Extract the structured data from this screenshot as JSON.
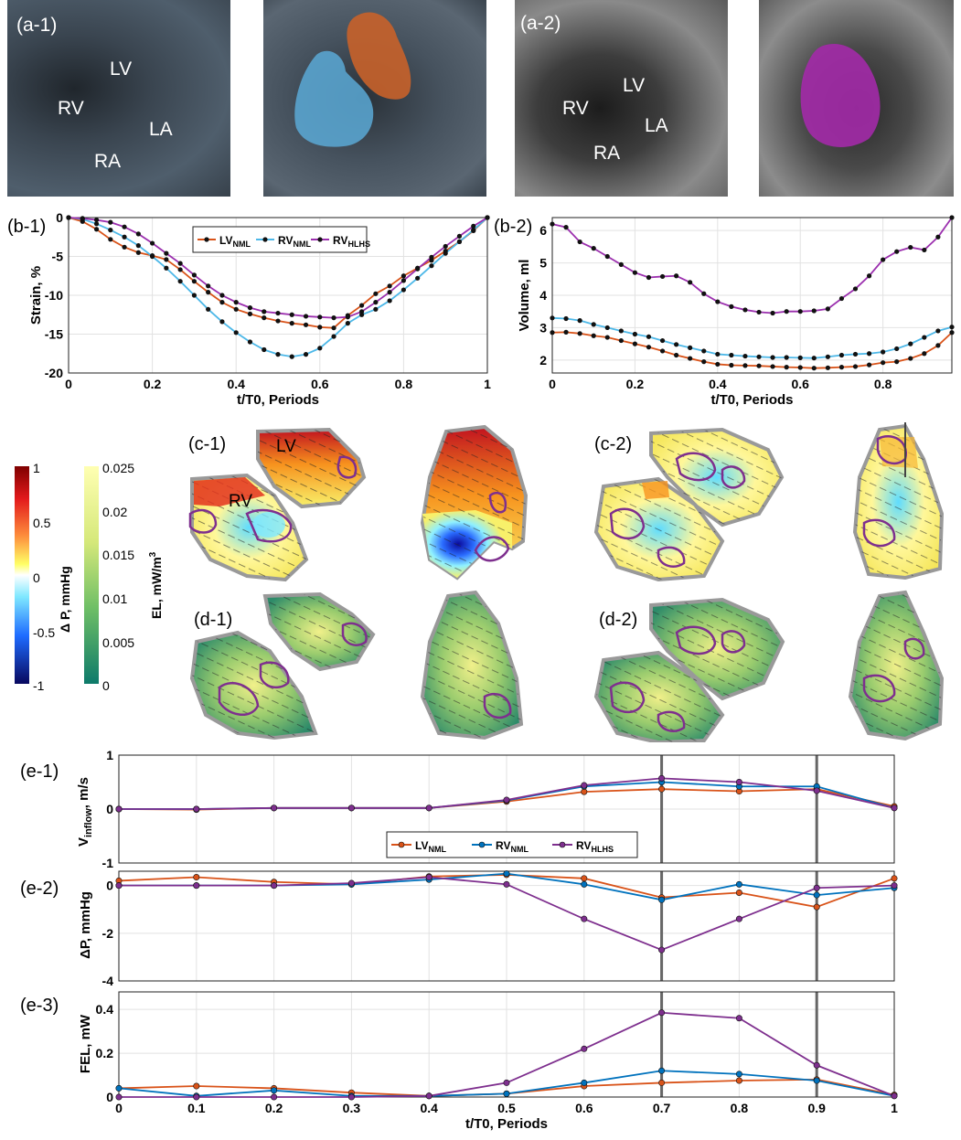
{
  "panel_a": {
    "a1": {
      "label": "(a-1)",
      "structures": {
        "lv": "LV",
        "rv": "RV",
        "la": "LA",
        "ra": "RA"
      }
    },
    "a2": {
      "label": "(a-2)",
      "structures": {
        "lv": "LV",
        "rv": "RV",
        "la": "LA",
        "ra": "RA"
      }
    },
    "colors": {
      "rv_seg": "#5aa9d6",
      "lv_seg": "#c8622a",
      "hlhs_seg": "#a32aa8"
    }
  },
  "legend": {
    "lv_nml": "LV",
    "lv_nml_sub": "NML",
    "rv_nml": "RV",
    "rv_nml_sub": "NML",
    "rv_hlhs": "RV",
    "rv_hlhs_sub": "HLHS"
  },
  "series_colors": {
    "lv_nml": "#d95319",
    "rv_nml": "#4db8e8",
    "rv_hlhs": "#9b2fae",
    "rv_nml_e": "#0072bd",
    "rv_hlhs_e": "#7e2f8e"
  },
  "chart_data": [
    {
      "id": "b1",
      "label": "(b-1)",
      "type": "line",
      "xlabel": "t/T0, Periods",
      "ylabel": "Strain, %",
      "xlim": [
        0,
        1
      ],
      "ylim": [
        -20,
        0
      ],
      "xticks": [
        "0",
        "0.2",
        "0.4",
        "0.6",
        "0.8",
        "1"
      ],
      "yticks": [
        "0",
        "-5",
        "-10",
        "-15",
        "-20"
      ],
      "x": [
        0,
        0.0333,
        0.0667,
        0.1,
        0.1333,
        0.1667,
        0.2,
        0.2333,
        0.2667,
        0.3,
        0.3333,
        0.3667,
        0.4,
        0.4333,
        0.4667,
        0.5,
        0.5333,
        0.5667,
        0.6,
        0.6333,
        0.6667,
        0.7,
        0.7333,
        0.7667,
        0.8,
        0.8333,
        0.8667,
        0.9,
        0.9333,
        0.9667,
        1
      ],
      "series": [
        {
          "key": "lv_nml",
          "name": "LVNML",
          "values": [
            0,
            -0.5,
            -1.5,
            -2.8,
            -3.8,
            -4.5,
            -4.9,
            -5.4,
            -6.7,
            -8.2,
            -9.6,
            -10.9,
            -11.8,
            -12.4,
            -12.9,
            -13.3,
            -13.6,
            -13.8,
            -14.1,
            -14.2,
            -12.6,
            -11.3,
            -9.8,
            -8.8,
            -7.5,
            -6.5,
            -5.5,
            -4.3,
            -3.1,
            -1.7,
            0
          ]
        },
        {
          "key": "rv_nml",
          "name": "RVNML",
          "values": [
            0,
            -0.2,
            -0.8,
            -1.6,
            -2.5,
            -3.6,
            -5.0,
            -6.5,
            -8.2,
            -10.0,
            -11.8,
            -13.4,
            -14.8,
            -16.0,
            -17.0,
            -17.6,
            -17.9,
            -17.6,
            -16.8,
            -15.3,
            -13.6,
            -12.5,
            -11.8,
            -10.7,
            -9.3,
            -7.8,
            -6.2,
            -4.6,
            -3.1,
            -1.6,
            0
          ]
        },
        {
          "key": "rv_hlhs",
          "name": "RVHLHS",
          "values": [
            0,
            -0.1,
            -0.3,
            -0.6,
            -1.2,
            -2.1,
            -3.3,
            -4.6,
            -5.9,
            -7.4,
            -8.8,
            -10.0,
            -10.9,
            -11.6,
            -12.1,
            -12.3,
            -12.5,
            -12.7,
            -12.8,
            -12.9,
            -12.8,
            -12.1,
            -10.9,
            -9.6,
            -8.1,
            -6.6,
            -5.1,
            -3.7,
            -2.4,
            -1.1,
            0
          ]
        }
      ]
    },
    {
      "id": "b2",
      "label": "(b-2)",
      "type": "line",
      "xlabel": "t/T0, Periods",
      "ylabel": "Volume, ml",
      "xlim": [
        0,
        0.9667
      ],
      "ylim": [
        1.6,
        6.4
      ],
      "xticks": [
        "0",
        "0.2",
        "0.4",
        "0.6",
        "0.8"
      ],
      "yticks": [
        "6",
        "5",
        "4",
        "3",
        "2"
      ],
      "x": [
        0,
        0.0333,
        0.0667,
        0.1,
        0.1333,
        0.1667,
        0.2,
        0.2333,
        0.2667,
        0.3,
        0.3333,
        0.3667,
        0.4,
        0.4333,
        0.4667,
        0.5,
        0.5333,
        0.5667,
        0.6,
        0.6333,
        0.6667,
        0.7,
        0.7333,
        0.7667,
        0.8,
        0.8333,
        0.8667,
        0.9,
        0.9333,
        0.9667
      ],
      "series": [
        {
          "key": "lv_nml",
          "name": "LVNML",
          "values": [
            2.85,
            2.86,
            2.82,
            2.75,
            2.7,
            2.6,
            2.5,
            2.4,
            2.28,
            2.15,
            2.05,
            1.95,
            1.87,
            1.84,
            1.83,
            1.82,
            1.8,
            1.78,
            1.77,
            1.75,
            1.76,
            1.78,
            1.8,
            1.85,
            1.92,
            1.95,
            2.05,
            2.2,
            2.45,
            2.85
          ]
        },
        {
          "key": "rv_nml",
          "name": "RVNML",
          "values": [
            3.3,
            3.28,
            3.22,
            3.1,
            3.0,
            2.9,
            2.8,
            2.72,
            2.6,
            2.48,
            2.38,
            2.28,
            2.18,
            2.15,
            2.12,
            2.1,
            2.08,
            2.08,
            2.07,
            2.06,
            2.1,
            2.15,
            2.18,
            2.2,
            2.25,
            2.35,
            2.5,
            2.7,
            2.9,
            3.02
          ]
        },
        {
          "key": "rv_hlhs",
          "name": "RVHLHS",
          "values": [
            6.2,
            6.1,
            5.65,
            5.45,
            5.2,
            4.95,
            4.7,
            4.55,
            4.58,
            4.6,
            4.4,
            4.05,
            3.8,
            3.65,
            3.55,
            3.48,
            3.45,
            3.5,
            3.5,
            3.52,
            3.58,
            3.9,
            4.2,
            4.6,
            5.1,
            5.35,
            5.48,
            5.4,
            5.8,
            6.4
          ]
        }
      ]
    },
    {
      "id": "e1",
      "label": "(e-1)",
      "type": "line",
      "ylabel": "V",
      "ylabel_sub": "inflow",
      "ylabel_unit": ", m/s",
      "xlim": [
        0,
        1
      ],
      "ylim": [
        -1,
        1
      ],
      "yticks": [
        "1",
        "0",
        "-1"
      ],
      "x": [
        0,
        0.1,
        0.2,
        0.3,
        0.4,
        0.5,
        0.6,
        0.7,
        0.8,
        0.9,
        1
      ],
      "series": [
        {
          "key": "lv_nml",
          "name": "LVNML",
          "values": [
            0.0,
            -0.01,
            0.02,
            0.02,
            0.02,
            0.14,
            0.32,
            0.37,
            0.33,
            0.37,
            0.05
          ]
        },
        {
          "key": "rv_nml_e",
          "name": "RVNML",
          "values": [
            0.0,
            0.0,
            0.02,
            0.02,
            0.02,
            0.16,
            0.42,
            0.5,
            0.42,
            0.42,
            0.02
          ]
        },
        {
          "key": "rv_hlhs_e",
          "name": "RVHLHS",
          "values": [
            0.0,
            0.0,
            0.02,
            0.02,
            0.02,
            0.17,
            0.44,
            0.57,
            0.5,
            0.34,
            0.02
          ]
        }
      ]
    },
    {
      "id": "e2",
      "label": "(e-2)",
      "type": "line",
      "ylabel": "ΔP, mmHg",
      "xlim": [
        0,
        1
      ],
      "ylim": [
        -4,
        0.6
      ],
      "yticks": [
        "0",
        "-2",
        "-4"
      ],
      "x": [
        0,
        0.1,
        0.2,
        0.3,
        0.4,
        0.5,
        0.6,
        0.7,
        0.8,
        0.9,
        1
      ],
      "series": [
        {
          "key": "lv_nml",
          "name": "LVNML",
          "values": [
            0.2,
            0.35,
            0.15,
            0.05,
            0.38,
            0.45,
            0.3,
            -0.5,
            -0.3,
            -0.9,
            0.3
          ]
        },
        {
          "key": "rv_nml_e",
          "name": "RVNML",
          "values": [
            0.0,
            0.0,
            0.0,
            0.05,
            0.25,
            0.5,
            0.05,
            -0.6,
            0.05,
            -0.4,
            -0.1
          ]
        },
        {
          "key": "rv_hlhs_e",
          "name": "RVHLHS",
          "values": [
            0.0,
            0.0,
            0.0,
            0.1,
            0.35,
            0.05,
            -1.4,
            -2.7,
            -1.4,
            -0.1,
            0.0
          ]
        }
      ]
    },
    {
      "id": "e3",
      "label": "(e-3)",
      "type": "line",
      "xlabel": "t/T0, Periods",
      "ylabel": "FEL, mW",
      "xlim": [
        0,
        1
      ],
      "ylim": [
        0,
        0.48
      ],
      "xticks": [
        "0",
        "0.1",
        "0.2",
        "0.3",
        "0.4",
        "0.5",
        "0.6",
        "0.7",
        "0.8",
        "0.9",
        "1"
      ],
      "yticks": [
        "0.4",
        "0.2",
        "0"
      ],
      "x": [
        0,
        0.1,
        0.2,
        0.3,
        0.4,
        0.5,
        0.6,
        0.7,
        0.8,
        0.9,
        1
      ],
      "series": [
        {
          "key": "lv_nml",
          "name": "LVNML",
          "values": [
            0.04,
            0.05,
            0.04,
            0.02,
            0.005,
            0.015,
            0.05,
            0.065,
            0.075,
            0.08,
            0.01
          ]
        },
        {
          "key": "rv_nml_e",
          "name": "RVNML",
          "values": [
            0.04,
            0.005,
            0.03,
            0.005,
            0.005,
            0.015,
            0.065,
            0.12,
            0.105,
            0.075,
            0.005
          ]
        },
        {
          "key": "rv_hlhs_e",
          "name": "RVHLHS",
          "values": [
            0.0,
            0.0,
            0.0,
            0.0,
            0.005,
            0.065,
            0.22,
            0.385,
            0.36,
            0.145,
            0.005
          ]
        }
      ]
    }
  ],
  "panel_cd": {
    "c1": "(c-1)",
    "c2": "(c-2)",
    "d1": "(d-1)",
    "d2": "(d-2)",
    "lv": "LV",
    "rv": "RV",
    "dp_colorbar": {
      "ticks": [
        "1",
        "0.5",
        "0",
        "-0.5",
        "-1"
      ],
      "label": "Δ P, mmHg"
    },
    "el_colorbar": {
      "ticks": [
        "0.025",
        "0.02",
        "0.015",
        "0.01",
        "0.005",
        "0"
      ],
      "label": "EL, mW/m",
      "label_sup": "3"
    }
  }
}
